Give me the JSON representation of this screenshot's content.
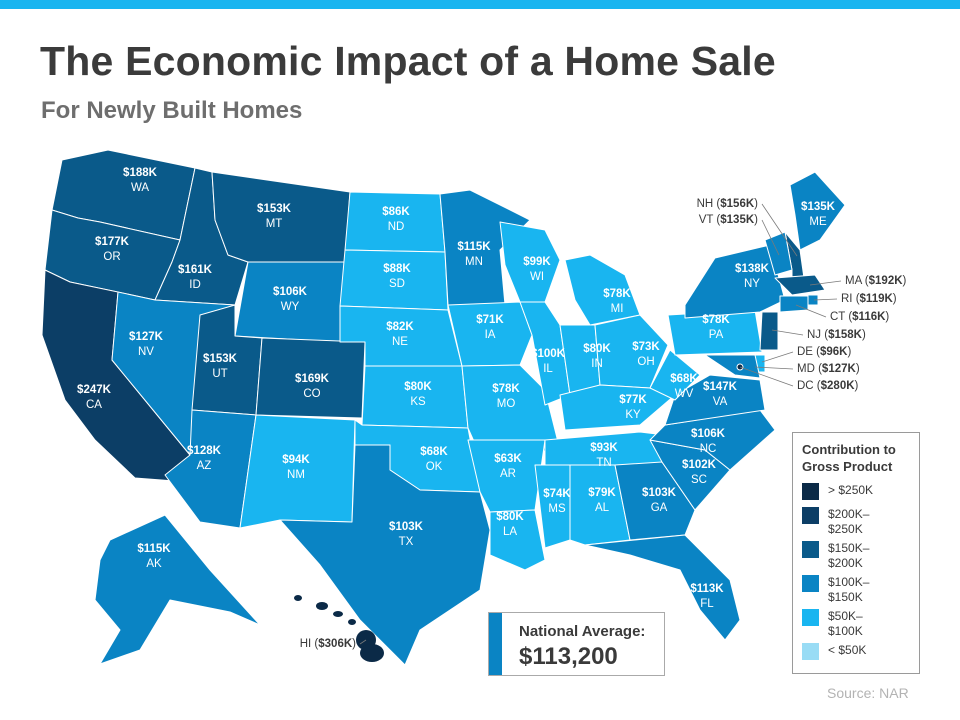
{
  "header": {
    "title": "The Economic Impact of a Home Sale",
    "subtitle": "For Newly Built Homes"
  },
  "colors": {
    "accent_bar": "#19b5f0",
    "gt250": "#0b2a47",
    "200to250": "#0c3e66",
    "150to200": "#0a5a8a",
    "100to150": "#0a84c4",
    "50to100": "#19b5f0",
    "lt50": "#99dcf5"
  },
  "states": [
    {
      "abbr": "WA",
      "value": "$188K",
      "bin": "150to200"
    },
    {
      "abbr": "OR",
      "value": "$177K",
      "bin": "150to200"
    },
    {
      "abbr": "CA",
      "value": "$247K",
      "bin": "200to250"
    },
    {
      "abbr": "ID",
      "value": "$161K",
      "bin": "150to200"
    },
    {
      "abbr": "NV",
      "value": "$127K",
      "bin": "100to150"
    },
    {
      "abbr": "MT",
      "value": "$153K",
      "bin": "150to200"
    },
    {
      "abbr": "WY",
      "value": "$106K",
      "bin": "100to150"
    },
    {
      "abbr": "UT",
      "value": "$153K",
      "bin": "150to200"
    },
    {
      "abbr": "CO",
      "value": "$169K",
      "bin": "150to200"
    },
    {
      "abbr": "AZ",
      "value": "$128K",
      "bin": "100to150"
    },
    {
      "abbr": "NM",
      "value": "$94K",
      "bin": "50to100"
    },
    {
      "abbr": "ND",
      "value": "$86K",
      "bin": "50to100"
    },
    {
      "abbr": "SD",
      "value": "$88K",
      "bin": "50to100"
    },
    {
      "abbr": "NE",
      "value": "$82K",
      "bin": "50to100"
    },
    {
      "abbr": "KS",
      "value": "$80K",
      "bin": "50to100"
    },
    {
      "abbr": "OK",
      "value": "$68K",
      "bin": "50to100"
    },
    {
      "abbr": "TX",
      "value": "$103K",
      "bin": "100to150"
    },
    {
      "abbr": "MN",
      "value": "$115K",
      "bin": "100to150"
    },
    {
      "abbr": "IA",
      "value": "$71K",
      "bin": "50to100"
    },
    {
      "abbr": "MO",
      "value": "$78K",
      "bin": "50to100"
    },
    {
      "abbr": "AR",
      "value": "$63K",
      "bin": "50to100"
    },
    {
      "abbr": "LA",
      "value": "$80K",
      "bin": "50to100"
    },
    {
      "abbr": "WI",
      "value": "$99K",
      "bin": "50to100"
    },
    {
      "abbr": "IL",
      "value": "$100K",
      "bin": "50to100"
    },
    {
      "abbr": "MI",
      "value": "$78K",
      "bin": "50to100"
    },
    {
      "abbr": "IN",
      "value": "$80K",
      "bin": "50to100"
    },
    {
      "abbr": "OH",
      "value": "$73K",
      "bin": "50to100"
    },
    {
      "abbr": "KY",
      "value": "$77K",
      "bin": "50to100"
    },
    {
      "abbr": "TN",
      "value": "$93K",
      "bin": "50to100"
    },
    {
      "abbr": "MS",
      "value": "$74K",
      "bin": "50to100"
    },
    {
      "abbr": "AL",
      "value": "$79K",
      "bin": "50to100"
    },
    {
      "abbr": "GA",
      "value": "$103K",
      "bin": "100to150"
    },
    {
      "abbr": "FL",
      "value": "$113K",
      "bin": "100to150"
    },
    {
      "abbr": "SC",
      "value": "$102K",
      "bin": "100to150"
    },
    {
      "abbr": "NC",
      "value": "$106K",
      "bin": "100to150"
    },
    {
      "abbr": "VA",
      "value": "$147K",
      "bin": "100to150"
    },
    {
      "abbr": "WV",
      "value": "$68K",
      "bin": "50to100"
    },
    {
      "abbr": "PA",
      "value": "$78K",
      "bin": "50to100"
    },
    {
      "abbr": "NY",
      "value": "$138K",
      "bin": "100to150"
    },
    {
      "abbr": "ME",
      "value": "$135K",
      "bin": "100to150"
    },
    {
      "abbr": "AK",
      "value": "$115K",
      "bin": "100to150"
    }
  ],
  "callouts": [
    {
      "abbr": "NH",
      "value": "$156K",
      "bin": "150to200"
    },
    {
      "abbr": "VT",
      "value": "$135K",
      "bin": "100to150"
    },
    {
      "abbr": "MA",
      "value": "$192K",
      "bin": "150to200"
    },
    {
      "abbr": "RI",
      "value": "$119K",
      "bin": "100to150"
    },
    {
      "abbr": "CT",
      "value": "$116K",
      "bin": "100to150"
    },
    {
      "abbr": "NJ",
      "value": "$158K",
      "bin": "150to200"
    },
    {
      "abbr": "DE",
      "value": "$96K",
      "bin": "50to100"
    },
    {
      "abbr": "MD",
      "value": "$127K",
      "bin": "100to150"
    },
    {
      "abbr": "DC",
      "value": "$280K",
      "bin": "gt250"
    },
    {
      "abbr": "HI",
      "value": "$306K",
      "bin": "gt250"
    }
  ],
  "legend": {
    "title": "Contribution to Gross Product",
    "items": [
      {
        "label": "> $250K",
        "color": "#0b2a47"
      },
      {
        "label": "$200K–\n$250K",
        "color": "#0c3e66"
      },
      {
        "label": "$150K–\n$200K",
        "color": "#0a5a8a"
      },
      {
        "label": "$100K–\n$150K",
        "color": "#0a84c4"
      },
      {
        "label": "$50K–\n$100K",
        "color": "#19b5f0"
      },
      {
        "label": "< $50K",
        "color": "#99dcf5"
      }
    ]
  },
  "national_average": {
    "label": "National Average:",
    "value": "$113,200"
  },
  "source": "Source: NAR"
}
